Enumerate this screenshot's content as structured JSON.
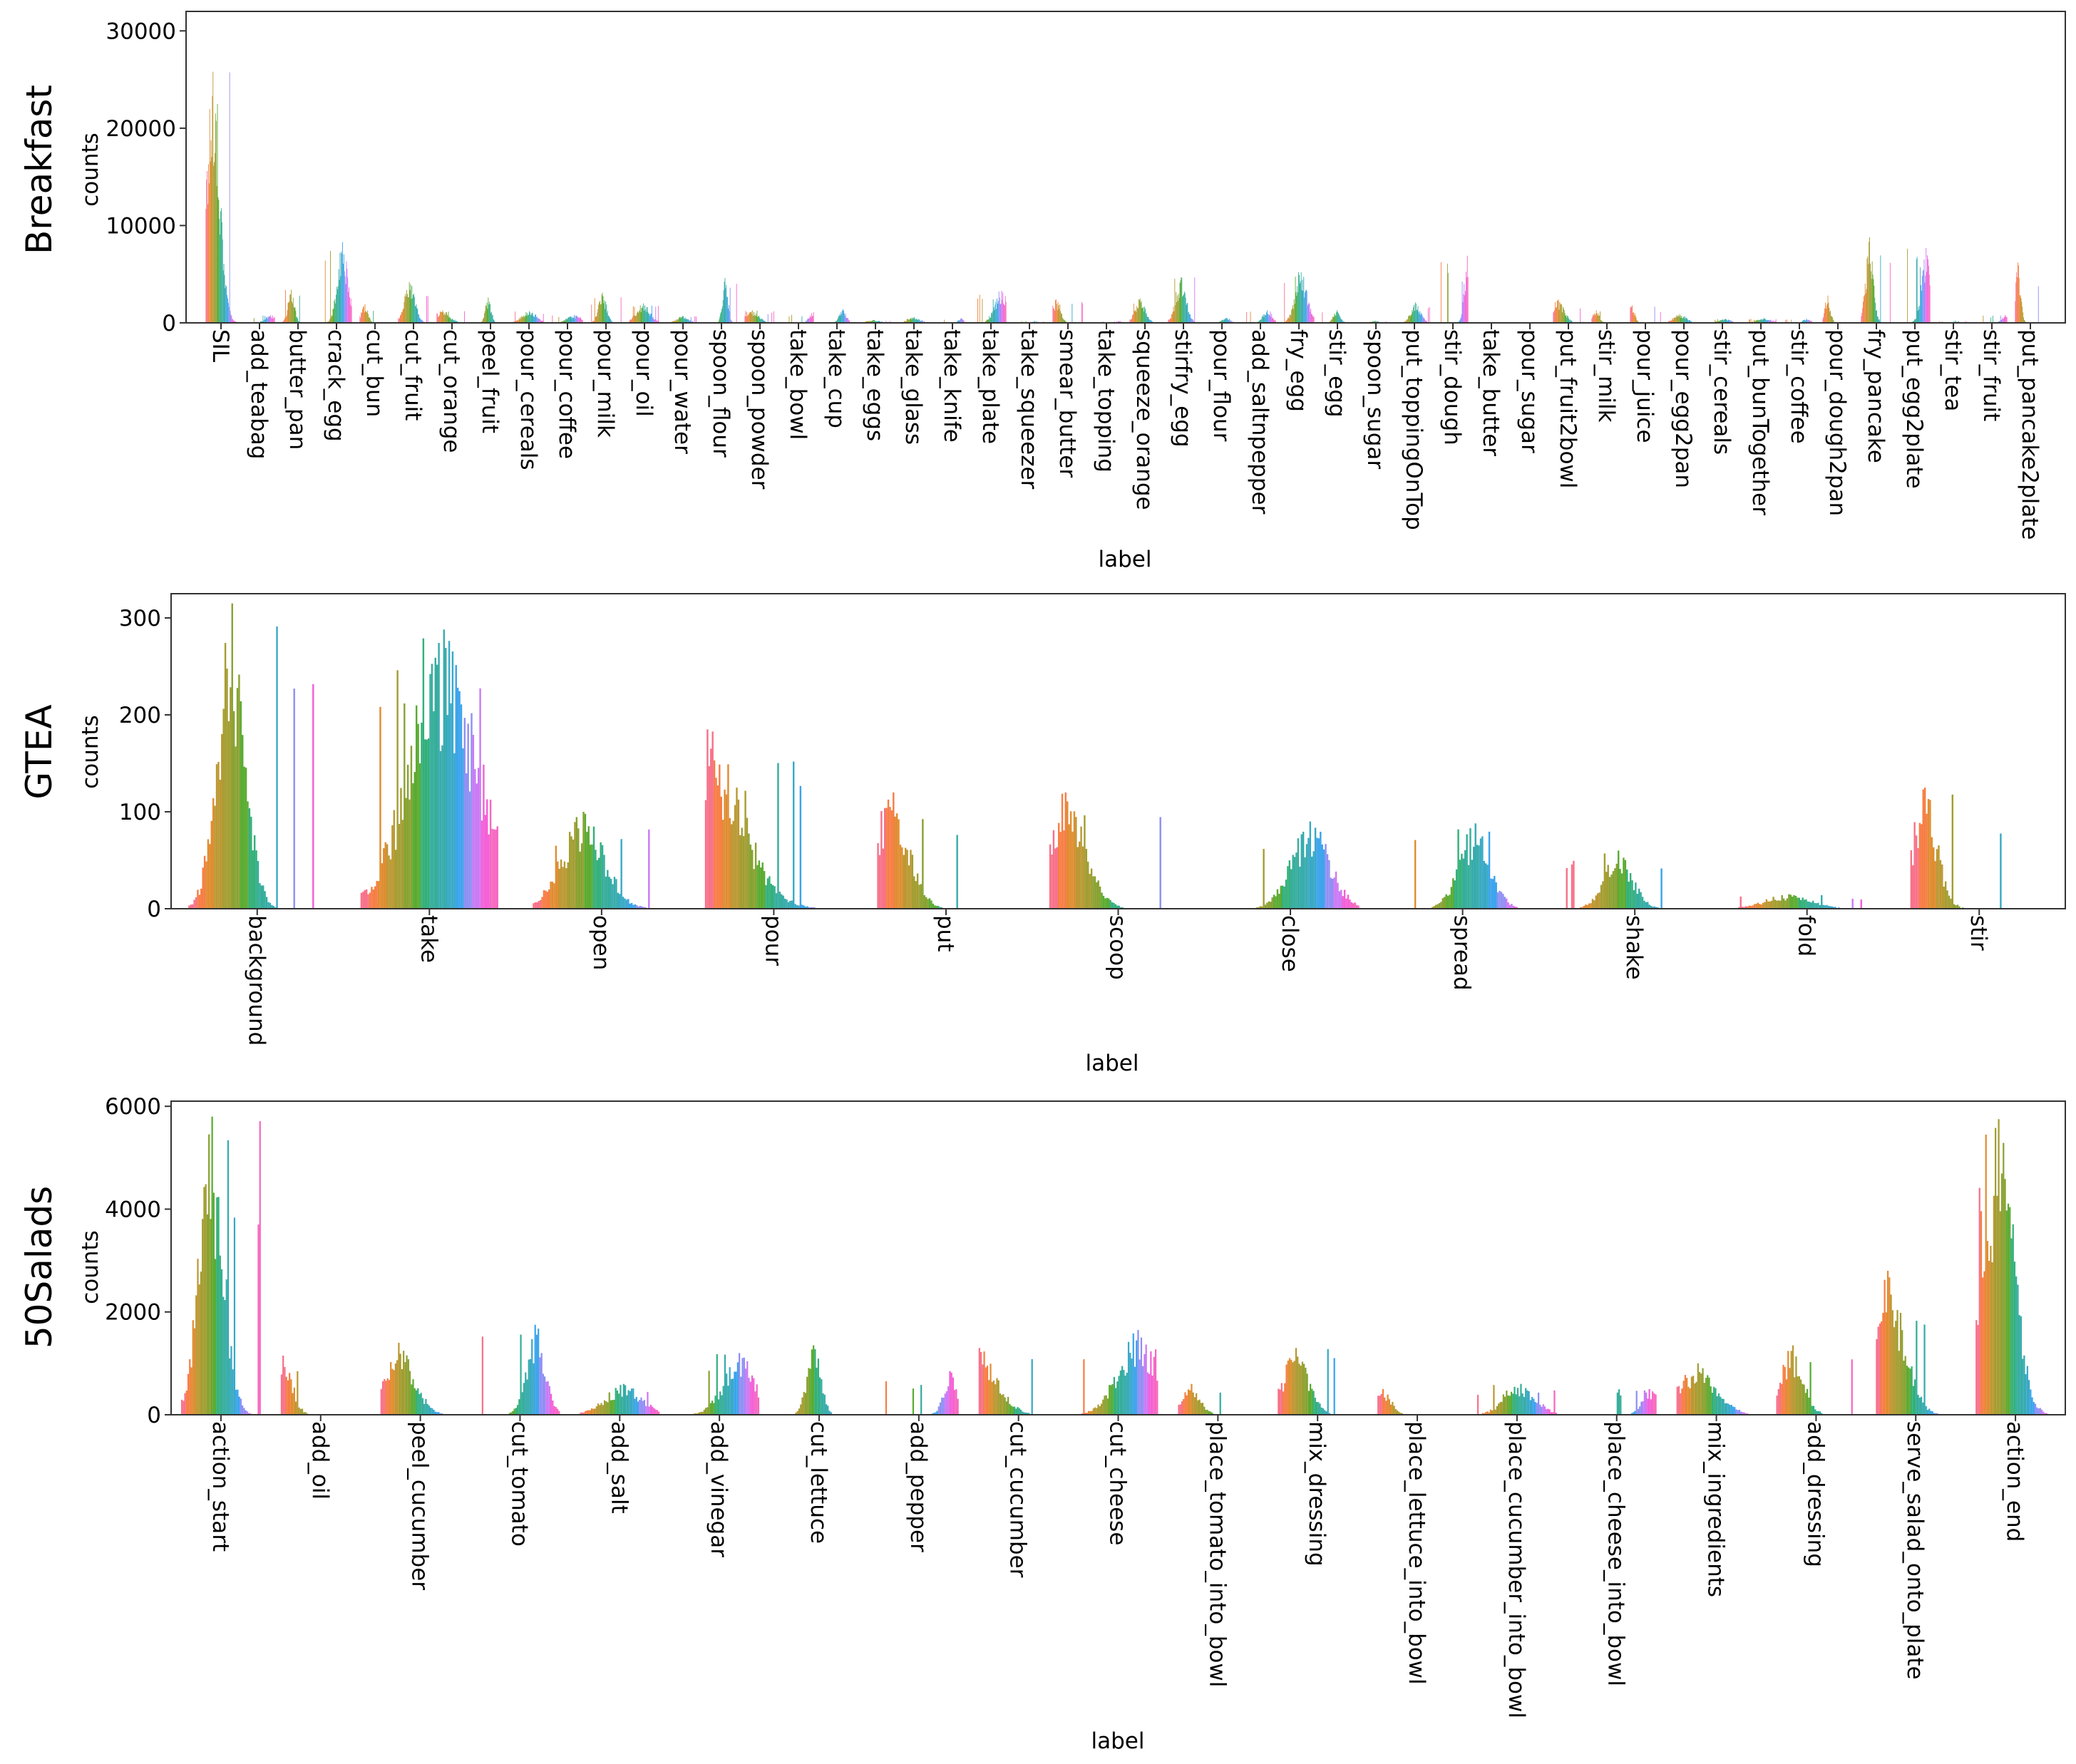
{
  "chart_data": [
    {
      "type": "bar",
      "row_label": "Breakfast",
      "xlabel": "label",
      "ylabel": "counts",
      "ylim": [
        0,
        32000
      ],
      "yticks": [
        0,
        10000,
        20000,
        30000
      ],
      "categories": [
        "SIL",
        "add_teabag",
        "butter_pan",
        "crack_egg",
        "cut_bun",
        "cut_fruit",
        "cut_orange",
        "peel_fruit",
        "pour_cereals",
        "pour_coffee",
        "pour_milk",
        "pour_oil",
        "pour_water",
        "spoon_flour",
        "spoon_powder",
        "take_bowl",
        "take_cup",
        "take_eggs",
        "take_glass",
        "take_knife",
        "take_plate",
        "take_squeezer",
        "smear_butter",
        "take_topping",
        "squeeze_orange",
        "stirfry_egg",
        "pour_flour",
        "add_saltnpepper",
        "fry_egg",
        "stir_egg",
        "spoon_sugar",
        "put_toppingOnTop",
        "stir_dough",
        "take_butter",
        "pour_sugar",
        "put_fruit2bowl",
        "stir_milk",
        "pour_juice",
        "pour_egg2pan",
        "stir_cereals",
        "put_bunTogether",
        "stir_coffee",
        "pour_dough2pan",
        "fry_pancake",
        "put_egg2plate",
        "stir_tea",
        "stir_fruit",
        "put_pancake2plate"
      ],
      "peaks": [
        25800,
        800,
        3400,
        8300,
        1900,
        4200,
        1300,
        2600,
        1200,
        800,
        3100,
        2000,
        700,
        4600,
        1300,
        1100,
        1400,
        300,
        600,
        500,
        3300,
        200,
        2400,
        200,
        2500,
        4700,
        500,
        1300,
        5200,
        1300,
        200,
        2100,
        6900,
        100,
        100,
        2400,
        1300,
        1800,
        900,
        400,
        500,
        400,
        2800,
        8800,
        7700,
        200,
        800,
        6200
      ],
      "n_bars": 48
    },
    {
      "type": "bar",
      "row_label": "GTEA",
      "xlabel": "label",
      "ylabel": "counts",
      "ylim": [
        0,
        325
      ],
      "yticks": [
        0,
        100,
        200,
        300
      ],
      "categories": [
        "background",
        "take",
        "open",
        "pour",
        "put",
        "scoop",
        "close",
        "spread",
        "shake",
        "fold",
        "stir"
      ],
      "peaks": [
        315,
        288,
        100,
        185,
        120,
        120,
        90,
        88,
        60,
        15,
        125
      ],
      "n_bars": 80
    },
    {
      "type": "bar",
      "row_label": "50Salads",
      "xlabel": "label",
      "ylabel": "counts",
      "ylim": [
        0,
        6100
      ],
      "yticks": [
        0,
        2000,
        4000,
        6000
      ],
      "categories": [
        "action_start",
        "add_oil",
        "peel_cucumber",
        "cut_tomato",
        "add_salt",
        "add_vinegar",
        "cut_lettuce",
        "add_pepper",
        "cut_cucumber",
        "cut_cheese",
        "place_tomato_into_bowl",
        "mix_dressing",
        "place_lettuce_into_bowl",
        "place_cucumber_into_bowl",
        "place_cheese_into_bowl",
        "mix_ingredients",
        "add_dressing",
        "serve_salad_onto_plate",
        "action_end"
      ],
      "peaks": [
        5800,
        1150,
        1400,
        1750,
        600,
        1200,
        1350,
        850,
        1300,
        1650,
        600,
        1300,
        500,
        600,
        500,
        1000,
        1350,
        2800,
        5750
      ],
      "n_bars": 50
    }
  ],
  "palette": [
    "#f77189",
    "#f77d44",
    "#e08c30",
    "#bb9832",
    "#a39d31",
    "#88a231",
    "#5aab31",
    "#33b07a",
    "#35ad9b",
    "#36abac",
    "#38a9c5",
    "#3ba3ec",
    "#8f8ff4",
    "#cc79f4",
    "#f45fd7",
    "#f668c0"
  ]
}
